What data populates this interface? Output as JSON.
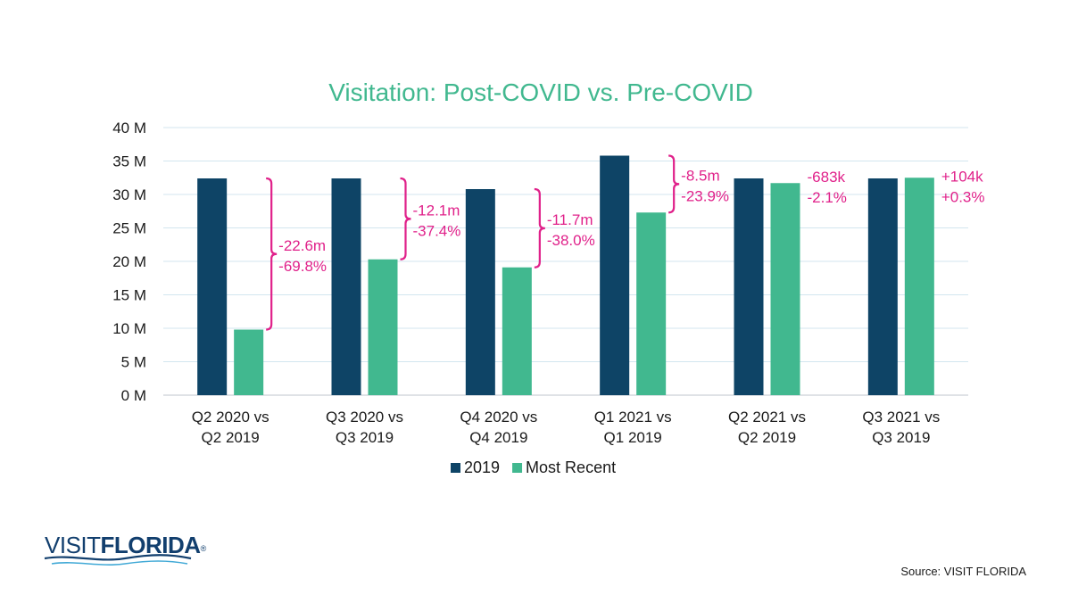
{
  "chart_data": {
    "type": "bar",
    "title": "Visitation: Post-COVID vs. Pre-COVID",
    "categories": [
      [
        "Q2 2020 vs",
        "Q2 2019"
      ],
      [
        "Q3 2020 vs",
        "Q3 2019"
      ],
      [
        "Q4 2020 vs",
        "Q4 2019"
      ],
      [
        "Q1 2021 vs",
        "Q1 2019"
      ],
      [
        "Q2 2021 vs",
        "Q2 2019"
      ],
      [
        "Q3 2021 vs",
        "Q3 2019"
      ]
    ],
    "series": [
      {
        "name": "2019",
        "color": "#0e4466",
        "values": [
          32.4,
          32.4,
          30.8,
          35.8,
          32.4,
          32.4
        ]
      },
      {
        "name": "Most Recent",
        "color": "#41b88f",
        "values": [
          9.8,
          20.3,
          19.1,
          27.3,
          31.7,
          32.5
        ]
      }
    ],
    "ylim": [
      0,
      40
    ],
    "yticks": [
      0,
      5,
      10,
      15,
      20,
      25,
      30,
      35,
      40
    ],
    "ytick_labels": [
      "0 M",
      "5 M",
      "10 M",
      "15 M",
      "20 M",
      "25 M",
      "30 M",
      "35 M",
      "40 M"
    ],
    "grid": true,
    "legend_position": "bottom",
    "annotations": [
      {
        "lines": [
          "-22.6m",
          "-69.8%"
        ],
        "bracket": true
      },
      {
        "lines": [
          "-12.1m",
          "-37.4%"
        ],
        "bracket": true
      },
      {
        "lines": [
          "-11.7m",
          "-38.0%"
        ],
        "bracket": true
      },
      {
        "lines": [
          "-8.5m",
          "-23.9%"
        ],
        "bracket": true
      },
      {
        "lines": [
          "-683k",
          "-2.1%"
        ],
        "bracket": false
      },
      {
        "lines": [
          "+104k",
          "+0.3%"
        ],
        "bracket": false
      }
    ],
    "annotation_color": "#e0218a"
  },
  "logo": {
    "part1": "VISIT",
    "part2": "FLORIDA",
    "mark": "®"
  },
  "source": "Source: VISIT FLORIDA"
}
